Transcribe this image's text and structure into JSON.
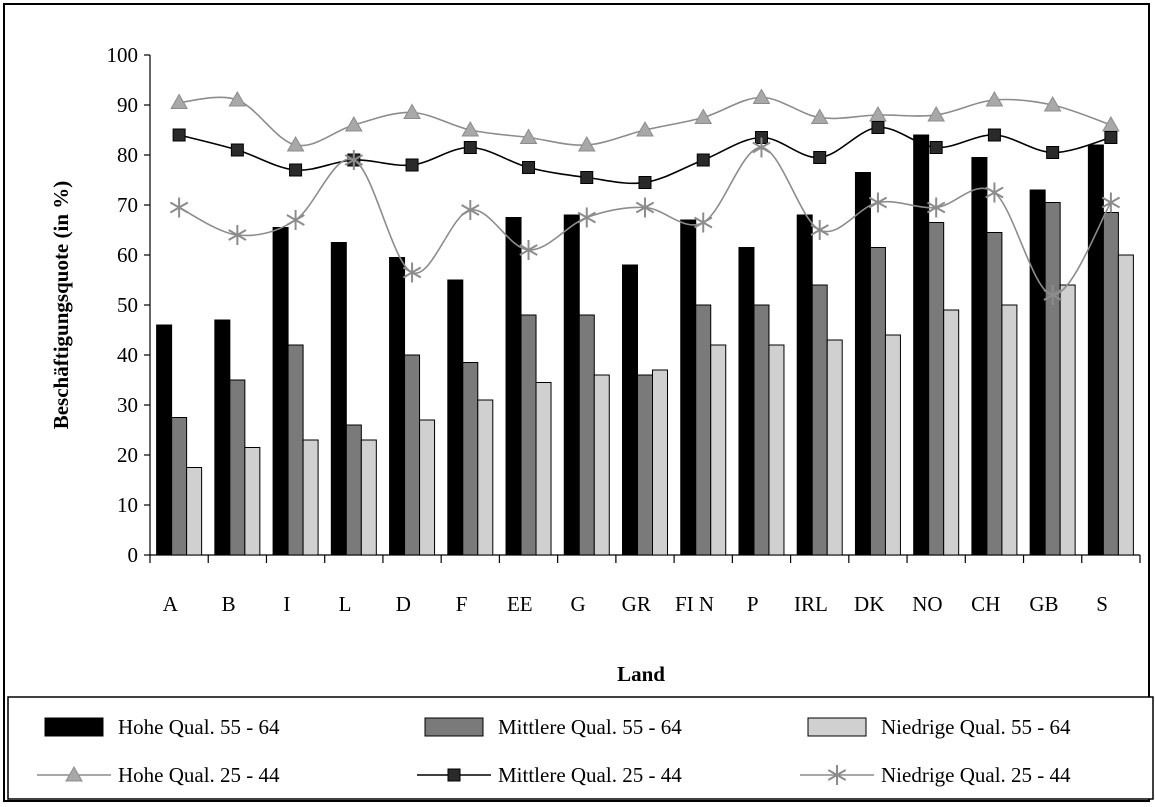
{
  "chart_data": {
    "type": "bar",
    "xlabel": "Land",
    "ylabel": "Beschäftigungsquote (in %)",
    "ylim": [
      0,
      100
    ],
    "yticks": [
      0,
      10,
      20,
      30,
      40,
      50,
      60,
      70,
      80,
      90,
      100
    ],
    "categories": [
      "A",
      "B",
      "I",
      "L",
      "D",
      "F",
      "EE",
      "G",
      "GR",
      "FI N",
      "P",
      "IRL",
      "DK",
      "NO",
      "CH",
      "GB",
      "S"
    ],
    "bar_series": [
      {
        "name": "Hohe Qual. 55 - 64",
        "color": "#000000",
        "values": [
          46,
          47,
          65.5,
          62.5,
          59.5,
          55,
          67.5,
          68,
          58,
          67,
          61.5,
          68,
          76.5,
          84,
          79.5,
          73,
          82
        ]
      },
      {
        "name": "Mittlere Qual. 55 - 64",
        "color": "#7a7a7a",
        "values": [
          27.5,
          35,
          42,
          26,
          40,
          38.5,
          48,
          48,
          36,
          50,
          50,
          54,
          61.5,
          66.5,
          64.5,
          70.5,
          68.5
        ]
      },
      {
        "name": "Niedrige Qual. 55 - 64",
        "color": "#d0d0d0",
        "values": [
          17.5,
          21.5,
          23,
          23,
          27,
          31,
          34.5,
          36,
          37,
          42,
          42,
          43,
          44,
          49,
          50,
          54,
          60
        ]
      }
    ],
    "line_series": [
      {
        "name": "Hohe Qual. 25 - 44",
        "color": "#8c8c8c",
        "marker": "triangle",
        "values": [
          90.5,
          91,
          82,
          86,
          88.5,
          85,
          83.5,
          82,
          85,
          87.5,
          91.5,
          87.5,
          88,
          88,
          91,
          90,
          86
        ]
      },
      {
        "name": "Mittlere Qual. 25 - 44",
        "color": "#000000",
        "marker": "square",
        "values": [
          84,
          81,
          77,
          79,
          78,
          81.5,
          77.5,
          75.5,
          74.5,
          79,
          83.5,
          79.5,
          85.5,
          81.5,
          84,
          80.5,
          83.5
        ]
      },
      {
        "name": "Niedrige Qual. 25 - 44",
        "color": "#8c8c8c",
        "marker": "star",
        "values": [
          69.5,
          64,
          67,
          79,
          56.5,
          69,
          61,
          67.5,
          69.5,
          66.5,
          81.5,
          65,
          70.5,
          69.5,
          72.5,
          52,
          70.5
        ]
      }
    ],
    "legend_position": "bottom",
    "grid": false
  }
}
